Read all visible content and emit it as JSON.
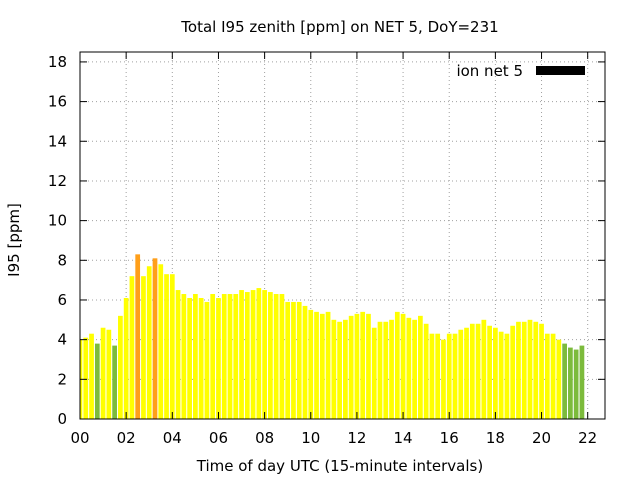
{
  "chart_data": {
    "type": "bar",
    "title": "Total I95 zenith [ppm] on NET 5, DoY=231",
    "xlabel": "Time of day UTC (15-minute intervals)",
    "ylabel": "I95 [ppm]",
    "ylim": [
      0,
      18.5
    ],
    "xlim": [
      0,
      22.75
    ],
    "x_ticks": [
      "00",
      "02",
      "04",
      "06",
      "08",
      "10",
      "12",
      "14",
      "16",
      "18",
      "20",
      "22"
    ],
    "y_ticks": [
      "0",
      "2",
      "4",
      "6",
      "8",
      "10",
      "12",
      "14",
      "16",
      "18"
    ],
    "grid": true,
    "legend": {
      "label": "ion net 5",
      "placement": "top-right",
      "color": "#000000"
    },
    "colors": {
      "green": "#7cbb3c",
      "yellow": "#ffff00",
      "orange": "#ff9f1a"
    },
    "interval_hours": 0.25,
    "values": [
      4.0,
      4.1,
      4.3,
      3.8,
      4.6,
      4.5,
      3.7,
      5.2,
      6.1,
      7.2,
      8.3,
      7.2,
      7.7,
      8.1,
      7.8,
      7.3,
      7.3,
      6.5,
      6.3,
      6.1,
      6.3,
      6.1,
      5.9,
      6.3,
      6.1,
      6.3,
      6.3,
      6.3,
      6.5,
      6.4,
      6.5,
      6.6,
      6.5,
      6.4,
      6.3,
      6.3,
      5.9,
      5.9,
      5.9,
      5.7,
      5.5,
      5.4,
      5.3,
      5.4,
      5.0,
      4.9,
      5.0,
      5.2,
      5.3,
      5.4,
      5.3,
      4.6,
      4.9,
      4.9,
      5.0,
      5.4,
      5.3,
      5.1,
      5.0,
      5.2,
      4.8,
      4.3,
      4.3,
      4.0,
      4.3,
      4.3,
      4.5,
      4.6,
      4.8,
      4.8,
      5.0,
      4.7,
      4.6,
      4.4,
      4.3,
      4.7,
      4.9,
      4.9,
      5.0,
      4.9,
      4.8,
      4.3,
      4.3,
      4.0,
      3.8,
      3.6,
      3.5,
      3.7
    ],
    "bar_colors": [
      "yellow",
      "yellow",
      "yellow",
      "green",
      "yellow",
      "yellow",
      "green",
      "yellow",
      "yellow",
      "yellow",
      "orange",
      "yellow",
      "yellow",
      "orange",
      "yellow",
      "yellow",
      "yellow",
      "yellow",
      "yellow",
      "yellow",
      "yellow",
      "yellow",
      "yellow",
      "yellow",
      "yellow",
      "yellow",
      "yellow",
      "yellow",
      "yellow",
      "yellow",
      "yellow",
      "yellow",
      "yellow",
      "yellow",
      "yellow",
      "yellow",
      "yellow",
      "yellow",
      "yellow",
      "yellow",
      "yellow",
      "yellow",
      "yellow",
      "yellow",
      "yellow",
      "yellow",
      "yellow",
      "yellow",
      "yellow",
      "yellow",
      "yellow",
      "yellow",
      "yellow",
      "yellow",
      "yellow",
      "yellow",
      "yellow",
      "yellow",
      "yellow",
      "yellow",
      "yellow",
      "yellow",
      "yellow",
      "yellow",
      "yellow",
      "yellow",
      "yellow",
      "yellow",
      "yellow",
      "yellow",
      "yellow",
      "yellow",
      "yellow",
      "yellow",
      "yellow",
      "yellow",
      "yellow",
      "yellow",
      "yellow",
      "yellow",
      "yellow",
      "yellow",
      "yellow",
      "yellow",
      "green",
      "green",
      "green",
      "green"
    ]
  }
}
